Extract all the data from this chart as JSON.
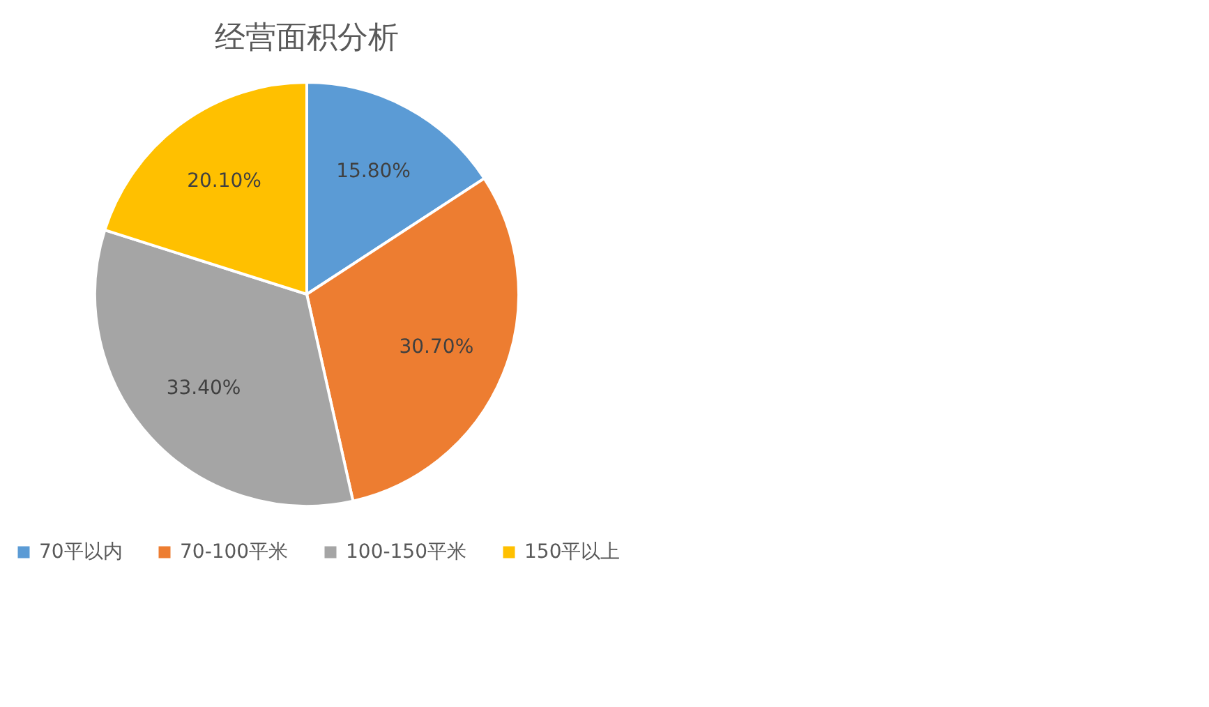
{
  "chart_data": {
    "type": "pie",
    "title": "经营面积分析",
    "categories": [
      "70平以内",
      "70-100平米",
      "100-150平米",
      "150平以上"
    ],
    "values": [
      15.8,
      30.7,
      33.4,
      20.1
    ],
    "colors": [
      "#5b9bd5",
      "#ed7d31",
      "#a5a5a5",
      "#ffc000"
    ],
    "value_labels": [
      "15.80%",
      "30.70%",
      "33.40%",
      "20.10%"
    ],
    "legend": "bottom"
  }
}
